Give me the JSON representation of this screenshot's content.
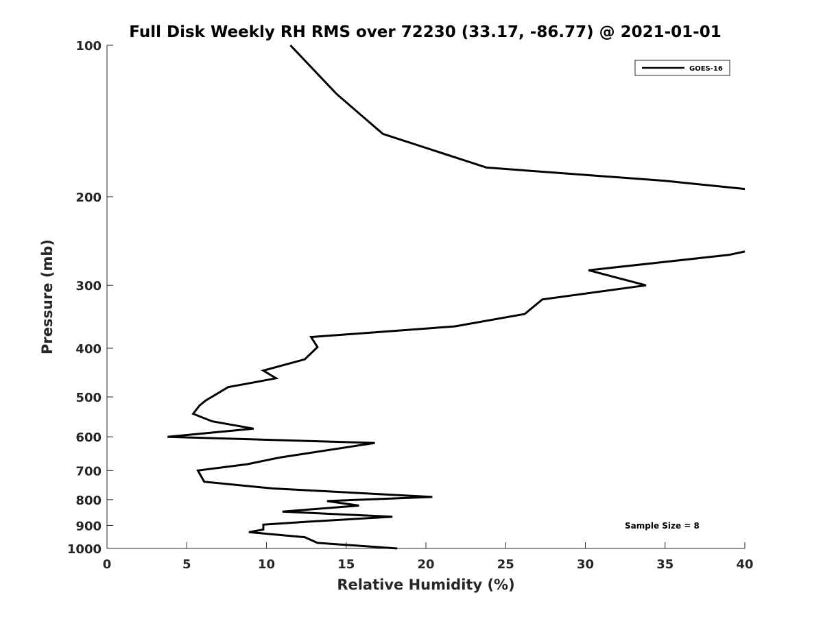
{
  "chart_data": {
    "type": "line",
    "title": "Full Disk Weekly RH RMS over 72230 (33.17, -86.77) @ 2021-01-01",
    "xlabel": "Relative Humidity (%)",
    "ylabel": "Pressure (mb)",
    "xlim": [
      0,
      40
    ],
    "ylim": [
      100,
      1000
    ],
    "yscale": "log",
    "y_reversed": true,
    "grid": false,
    "legend_position": "top-right",
    "x_ticks": [
      "0",
      "5",
      "10",
      "15",
      "20",
      "25",
      "30",
      "35",
      "40"
    ],
    "y_ticks": [
      "100",
      "200",
      "300",
      "400",
      "500",
      "600",
      "700",
      "800",
      "900",
      "1000"
    ],
    "annotation": "Sample Size = 8",
    "series": [
      {
        "name": "GOES-16",
        "color": "#000000",
        "segments": [
          [
            {
              "x": 11.5,
              "y": 100
            },
            {
              "x": 14.4,
              "y": 125
            },
            {
              "x": 17.3,
              "y": 150
            },
            {
              "x": 23.8,
              "y": 175
            },
            {
              "x": 35.0,
              "y": 186
            },
            {
              "x": 40.0,
              "y": 193
            }
          ],
          [
            {
              "x": 40.0,
              "y": 257
            },
            {
              "x": 39.0,
              "y": 261
            },
            {
              "x": 30.2,
              "y": 280
            },
            {
              "x": 33.8,
              "y": 300
            },
            {
              "x": 27.3,
              "y": 320
            },
            {
              "x": 26.2,
              "y": 342
            },
            {
              "x": 21.8,
              "y": 362
            },
            {
              "x": 12.8,
              "y": 380
            },
            {
              "x": 13.2,
              "y": 398
            },
            {
              "x": 12.4,
              "y": 421
            },
            {
              "x": 9.8,
              "y": 443
            },
            {
              "x": 10.6,
              "y": 459
            },
            {
              "x": 7.6,
              "y": 478
            },
            {
              "x": 6.2,
              "y": 508
            },
            {
              "x": 5.8,
              "y": 520
            },
            {
              "x": 5.4,
              "y": 540
            },
            {
              "x": 6.6,
              "y": 559
            },
            {
              "x": 9.2,
              "y": 578
            },
            {
              "x": 3.8,
              "y": 600
            },
            {
              "x": 16.8,
              "y": 617
            },
            {
              "x": 10.8,
              "y": 660
            },
            {
              "x": 8.8,
              "y": 680
            },
            {
              "x": 5.7,
              "y": 700
            },
            {
              "x": 6.1,
              "y": 737
            },
            {
              "x": 10.4,
              "y": 760
            },
            {
              "x": 20.4,
              "y": 790
            },
            {
              "x": 13.8,
              "y": 805
            },
            {
              "x": 15.8,
              "y": 822
            },
            {
              "x": 11.0,
              "y": 845
            },
            {
              "x": 17.9,
              "y": 865
            },
            {
              "x": 12.5,
              "y": 885
            },
            {
              "x": 9.8,
              "y": 897
            },
            {
              "x": 9.8,
              "y": 917
            },
            {
              "x": 8.9,
              "y": 928
            },
            {
              "x": 12.4,
              "y": 950
            },
            {
              "x": 13.2,
              "y": 975
            },
            {
              "x": 18.2,
              "y": 1000
            }
          ]
        ]
      }
    ]
  }
}
